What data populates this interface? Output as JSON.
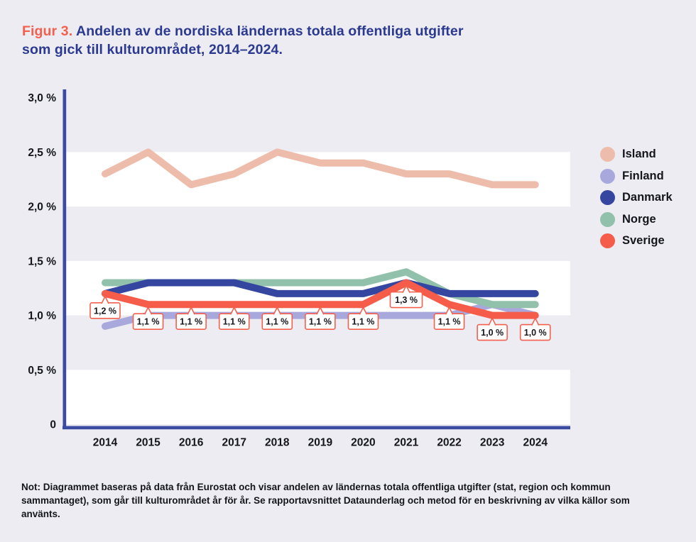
{
  "page": {
    "background": "#ececf2"
  },
  "title": {
    "prefix": "Figur 3.",
    "line1": "Andelen av de nordiska ländernas totala offentliga utgifter",
    "line2": "som gick till kulturområdet, 2014–2024."
  },
  "note": "Not: Diagrammet baseras på data från Eurostat och visar andelen av ländernas totala offentliga utgifter (stat, region och kommun sammantaget), som går till kulturområdet år för år. Se rapportavsnittet Dataunderlag och metod för en beskrivning av vilka källor som använts.",
  "colors": {
    "accent_orange": "#f4604d",
    "title_navy": "#2b3a90",
    "axis_navy": "#3b4aa2",
    "stripe_white": "#ffffff",
    "text_dark": "#15151d",
    "callout_border": "#f4604d"
  },
  "chart_data": {
    "type": "line",
    "title": "Figur 3. Andelen av de nordiska ländernas totala offentliga utgifter som gick till kulturområdet, 2014–2024.",
    "categories": [
      "2014",
      "2015",
      "2016",
      "2017",
      "2018",
      "2019",
      "2020",
      "2021",
      "2022",
      "2023",
      "2024"
    ],
    "xlabel": "",
    "ylabel": "",
    "ylim": [
      0,
      3.0
    ],
    "y_ticks": [
      {
        "value": 3.0,
        "label": "3,0 %"
      },
      {
        "value": 2.5,
        "label": "2,5 %"
      },
      {
        "value": 2.0,
        "label": "2,0 %"
      },
      {
        "value": 1.5,
        "label": "1,5 %"
      },
      {
        "value": 1.0,
        "label": "1,0 %"
      },
      {
        "value": 0.5,
        "label": "0,5 %"
      },
      {
        "value": 0,
        "label": "0"
      }
    ],
    "grid_bands": [
      [
        2.0,
        2.5
      ],
      [
        1.0,
        1.5
      ],
      [
        0.0,
        0.5
      ]
    ],
    "legend_position": "right",
    "series": [
      {
        "name": "Island",
        "color": "#eebcab",
        "values": [
          2.3,
          2.5,
          2.2,
          2.3,
          2.5,
          2.4,
          2.4,
          2.3,
          2.3,
          2.2,
          2.2
        ]
      },
      {
        "name": "Finland",
        "color": "#a9a8dd",
        "values": [
          0.9,
          1.0,
          1.0,
          1.0,
          1.0,
          1.0,
          1.0,
          1.0,
          1.0,
          1.1,
          1.0
        ]
      },
      {
        "name": "Danmark",
        "color": "#3546a0",
        "values": [
          1.2,
          1.3,
          1.3,
          1.3,
          1.2,
          1.2,
          1.2,
          1.3,
          1.2,
          1.2,
          1.2
        ]
      },
      {
        "name": "Norge",
        "color": "#91c0ab",
        "values": [
          1.3,
          1.3,
          1.3,
          1.3,
          1.3,
          1.3,
          1.3,
          1.4,
          1.2,
          1.1,
          1.1
        ]
      },
      {
        "name": "Sverige",
        "color": "#f55c49",
        "values": [
          1.2,
          1.1,
          1.1,
          1.1,
          1.1,
          1.1,
          1.1,
          1.3,
          1.1,
          1.0,
          1.0
        ]
      }
    ],
    "z_order": [
      "Island",
      "Finland",
      "Norge",
      "Danmark",
      "Sverige"
    ],
    "data_labels": {
      "series": "Sverige",
      "labels": [
        "1,2 %",
        "1,1 %",
        "1,1 %",
        "1,1 %",
        "1,1 %",
        "1,1 %",
        "1,1 %",
        "1,3 %",
        "1,1 %",
        "1,0 %",
        "1,0 %"
      ]
    }
  }
}
